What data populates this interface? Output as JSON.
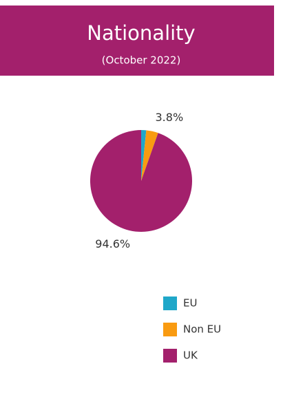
{
  "chart_data": {
    "type": "pie",
    "title": "Nationality",
    "subtitle": "(October 2022)",
    "categories": [
      "EU",
      "Non EU",
      "UK"
    ],
    "values": [
      1.6,
      3.8,
      94.6
    ],
    "value_labels": [
      null,
      "3.8%",
      "94.6%"
    ],
    "colors": [
      "#1fa7c9",
      "#f99b11",
      "#a3206c"
    ]
  }
}
